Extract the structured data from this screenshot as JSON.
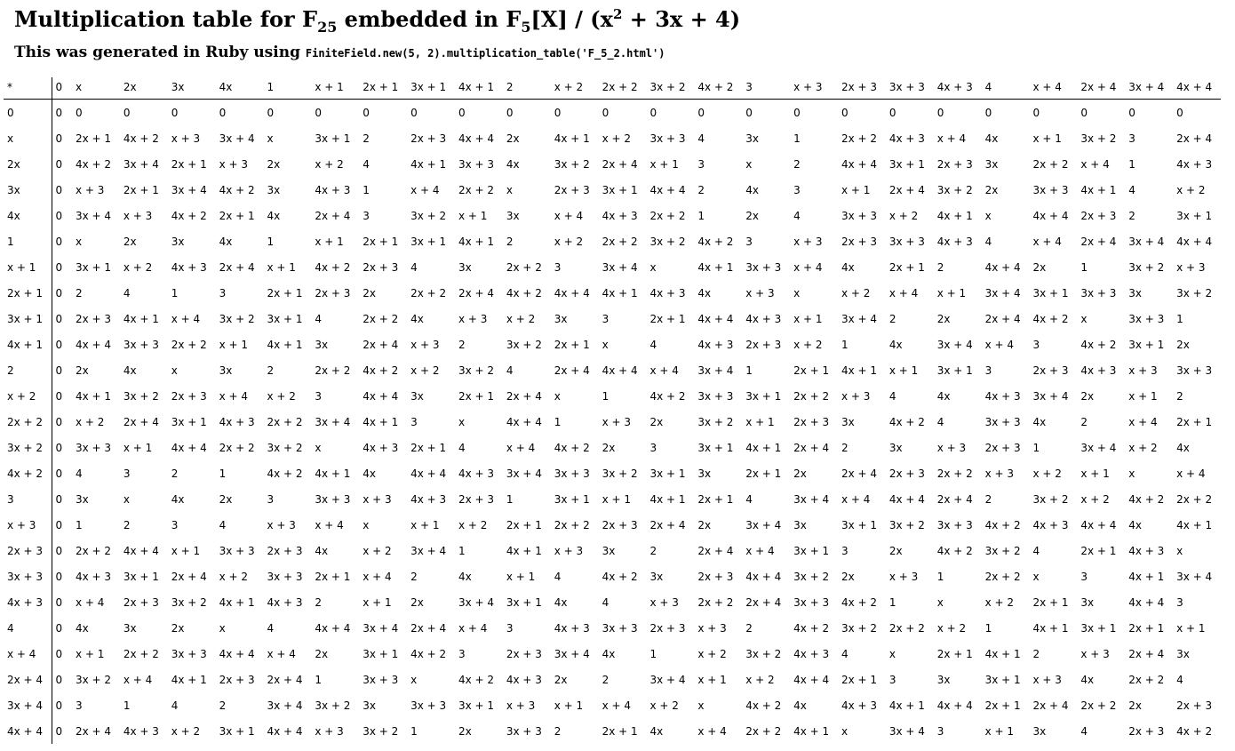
{
  "title": {
    "pre": "Multiplication table for F",
    "sub1": "25",
    "mid": " embedded in F",
    "sub2": "5",
    "post1": "[X] / (x",
    "sup": "2",
    "post2": " + 3x + 4)"
  },
  "subtitle": {
    "text": "This was generated in Ruby using ",
    "code": "FiniteField.new(5, 2).multiplication_table('F_5_2.html')"
  },
  "corner": "*",
  "elements": [
    "0",
    "x",
    "2x",
    "3x",
    "4x",
    "1",
    "x + 1",
    "2x + 1",
    "3x + 1",
    "4x + 1",
    "2",
    "x + 2",
    "2x + 2",
    "3x + 2",
    "4x + 2",
    "3",
    "x + 3",
    "2x + 3",
    "3x + 3",
    "4x + 3",
    "4",
    "x + 4",
    "2x + 4",
    "3x + 4",
    "4x + 4"
  ],
  "rows": [
    {
      "label": "0",
      "cells": [
        "0",
        "0",
        "0",
        "0",
        "0",
        "0",
        "0",
        "0",
        "0",
        "0",
        "0",
        "0",
        "0",
        "0",
        "0",
        "0",
        "0",
        "0",
        "0",
        "0",
        "0",
        "0",
        "0",
        "0",
        "0"
      ]
    },
    {
      "label": "x",
      "cells": [
        "0",
        "2x + 1",
        "4x + 2",
        "x + 3",
        "3x + 4",
        "x",
        "3x + 1",
        "2",
        "2x + 3",
        "4x + 4",
        "2x",
        "4x + 1",
        "x + 2",
        "3x + 3",
        "4",
        "3x",
        "1",
        "2x + 2",
        "4x + 3",
        "x + 4",
        "4x",
        "x + 1",
        "3x + 2",
        "3",
        "2x + 4"
      ]
    },
    {
      "label": "2x",
      "cells": [
        "0",
        "4x + 2",
        "3x + 4",
        "2x + 1",
        "x + 3",
        "2x",
        "x + 2",
        "4",
        "4x + 1",
        "3x + 3",
        "4x",
        "3x + 2",
        "2x + 4",
        "x + 1",
        "3",
        "x",
        "2",
        "4x + 4",
        "3x + 1",
        "2x + 3",
        "3x",
        "2x + 2",
        "x + 4",
        "1",
        "4x + 3"
      ]
    },
    {
      "label": "3x",
      "cells": [
        "0",
        "x + 3",
        "2x + 1",
        "3x + 4",
        "4x + 2",
        "3x",
        "4x + 3",
        "1",
        "x + 4",
        "2x + 2",
        "x",
        "2x + 3",
        "3x + 1",
        "4x + 4",
        "2",
        "4x",
        "3",
        "x + 1",
        "2x + 4",
        "3x + 2",
        "2x",
        "3x + 3",
        "4x + 1",
        "4",
        "x + 2"
      ]
    },
    {
      "label": "4x",
      "cells": [
        "0",
        "3x + 4",
        "x + 3",
        "4x + 2",
        "2x + 1",
        "4x",
        "2x + 4",
        "3",
        "3x + 2",
        "x + 1",
        "3x",
        "x + 4",
        "4x + 3",
        "2x + 2",
        "1",
        "2x",
        "4",
        "3x + 3",
        "x + 2",
        "4x + 1",
        "x",
        "4x + 4",
        "2x + 3",
        "2",
        "3x + 1"
      ]
    },
    {
      "label": "1",
      "cells": [
        "0",
        "x",
        "2x",
        "3x",
        "4x",
        "1",
        "x + 1",
        "2x + 1",
        "3x + 1",
        "4x + 1",
        "2",
        "x + 2",
        "2x + 2",
        "3x + 2",
        "4x + 2",
        "3",
        "x + 3",
        "2x + 3",
        "3x + 3",
        "4x + 3",
        "4",
        "x + 4",
        "2x + 4",
        "3x + 4",
        "4x + 4"
      ]
    },
    {
      "label": "x + 1",
      "cells": [
        "0",
        "3x + 1",
        "x + 2",
        "4x + 3",
        "2x + 4",
        "x + 1",
        "4x + 2",
        "2x + 3",
        "4",
        "3x",
        "2x + 2",
        "3",
        "3x + 4",
        "x",
        "4x + 1",
        "3x + 3",
        "x + 4",
        "4x",
        "2x + 1",
        "2",
        "4x + 4",
        "2x",
        "1",
        "3x + 2",
        "x + 3"
      ]
    },
    {
      "label": "2x + 1",
      "cells": [
        "0",
        "2",
        "4",
        "1",
        "3",
        "2x + 1",
        "2x + 3",
        "2x",
        "2x + 2",
        "2x + 4",
        "4x + 2",
        "4x + 4",
        "4x + 1",
        "4x + 3",
        "4x",
        "x + 3",
        "x",
        "x + 2",
        "x + 4",
        "x + 1",
        "3x + 4",
        "3x + 1",
        "3x + 3",
        "3x",
        "3x + 2"
      ]
    },
    {
      "label": "3x + 1",
      "cells": [
        "0",
        "2x + 3",
        "4x + 1",
        "x + 4",
        "3x + 2",
        "3x + 1",
        "4",
        "2x + 2",
        "4x",
        "x + 3",
        "x + 2",
        "3x",
        "3",
        "2x + 1",
        "4x + 4",
        "4x + 3",
        "x + 1",
        "3x + 4",
        "2",
        "2x",
        "2x + 4",
        "4x + 2",
        "x",
        "3x + 3",
        "1"
      ]
    },
    {
      "label": "4x + 1",
      "cells": [
        "0",
        "4x + 4",
        "3x + 3",
        "2x + 2",
        "x + 1",
        "4x + 1",
        "3x",
        "2x + 4",
        "x + 3",
        "2",
        "3x + 2",
        "2x + 1",
        "x",
        "4",
        "4x + 3",
        "2x + 3",
        "x + 2",
        "1",
        "4x",
        "3x + 4",
        "x + 4",
        "3",
        "4x + 2",
        "3x + 1",
        "2x"
      ]
    },
    {
      "label": "2",
      "cells": [
        "0",
        "2x",
        "4x",
        "x",
        "3x",
        "2",
        "2x + 2",
        "4x + 2",
        "x + 2",
        "3x + 2",
        "4",
        "2x + 4",
        "4x + 4",
        "x + 4",
        "3x + 4",
        "1",
        "2x + 1",
        "4x + 1",
        "x + 1",
        "3x + 1",
        "3",
        "2x + 3",
        "4x + 3",
        "x + 3",
        "3x + 3"
      ]
    },
    {
      "label": "x + 2",
      "cells": [
        "0",
        "4x + 1",
        "3x + 2",
        "2x + 3",
        "x + 4",
        "x + 2",
        "3",
        "4x + 4",
        "3x",
        "2x + 1",
        "2x + 4",
        "x",
        "1",
        "4x + 2",
        "3x + 3",
        "3x + 1",
        "2x + 2",
        "x + 3",
        "4",
        "4x",
        "4x + 3",
        "3x + 4",
        "2x",
        "x + 1",
        "2"
      ]
    },
    {
      "label": "2x + 2",
      "cells": [
        "0",
        "x + 2",
        "2x + 4",
        "3x + 1",
        "4x + 3",
        "2x + 2",
        "3x + 4",
        "4x + 1",
        "3",
        "x",
        "4x + 4",
        "1",
        "x + 3",
        "2x",
        "3x + 2",
        "x + 1",
        "2x + 3",
        "3x",
        "4x + 2",
        "4",
        "3x + 3",
        "4x",
        "2",
        "x + 4",
        "2x + 1"
      ]
    },
    {
      "label": "3x + 2",
      "cells": [
        "0",
        "3x + 3",
        "x + 1",
        "4x + 4",
        "2x + 2",
        "3x + 2",
        "x",
        "4x + 3",
        "2x + 1",
        "4",
        "x + 4",
        "4x + 2",
        "2x",
        "3",
        "3x + 1",
        "4x + 1",
        "2x + 4",
        "2",
        "3x",
        "x + 3",
        "2x + 3",
        "1",
        "3x + 4",
        "x + 2",
        "4x"
      ]
    },
    {
      "label": "4x + 2",
      "cells": [
        "0",
        "4",
        "3",
        "2",
        "1",
        "4x + 2",
        "4x + 1",
        "4x",
        "4x + 4",
        "4x + 3",
        "3x + 4",
        "3x + 3",
        "3x + 2",
        "3x + 1",
        "3x",
        "2x + 1",
        "2x",
        "2x + 4",
        "2x + 3",
        "2x + 2",
        "x + 3",
        "x + 2",
        "x + 1",
        "x",
        "x + 4"
      ]
    },
    {
      "label": "3",
      "cells": [
        "0",
        "3x",
        "x",
        "4x",
        "2x",
        "3",
        "3x + 3",
        "x + 3",
        "4x + 3",
        "2x + 3",
        "1",
        "3x + 1",
        "x + 1",
        "4x + 1",
        "2x + 1",
        "4",
        "3x + 4",
        "x + 4",
        "4x + 4",
        "2x + 4",
        "2",
        "3x + 2",
        "x + 2",
        "4x + 2",
        "2x + 2"
      ]
    },
    {
      "label": "x + 3",
      "cells": [
        "0",
        "1",
        "2",
        "3",
        "4",
        "x + 3",
        "x + 4",
        "x",
        "x + 1",
        "x + 2",
        "2x + 1",
        "2x + 2",
        "2x + 3",
        "2x + 4",
        "2x",
        "3x + 4",
        "3x",
        "3x + 1",
        "3x + 2",
        "3x + 3",
        "4x + 2",
        "4x + 3",
        "4x + 4",
        "4x",
        "4x + 1"
      ]
    },
    {
      "label": "2x + 3",
      "cells": [
        "0",
        "2x + 2",
        "4x + 4",
        "x + 1",
        "3x + 3",
        "2x + 3",
        "4x",
        "x + 2",
        "3x + 4",
        "1",
        "4x + 1",
        "x + 3",
        "3x",
        "2",
        "2x + 4",
        "x + 4",
        "3x + 1",
        "3",
        "2x",
        "4x + 2",
        "3x + 2",
        "4",
        "2x + 1",
        "4x + 3",
        "x"
      ]
    },
    {
      "label": "3x + 3",
      "cells": [
        "0",
        "4x + 3",
        "3x + 1",
        "2x + 4",
        "x + 2",
        "3x + 3",
        "2x + 1",
        "x + 4",
        "2",
        "4x",
        "x + 1",
        "4",
        "4x + 2",
        "3x",
        "2x + 3",
        "4x + 4",
        "3x + 2",
        "2x",
        "x + 3",
        "1",
        "2x + 2",
        "x",
        "3",
        "4x + 1",
        "3x + 4"
      ]
    },
    {
      "label": "4x + 3",
      "cells": [
        "0",
        "x + 4",
        "2x + 3",
        "3x + 2",
        "4x + 1",
        "4x + 3",
        "2",
        "x + 1",
        "2x",
        "3x + 4",
        "3x + 1",
        "4x",
        "4",
        "x + 3",
        "2x + 2",
        "2x + 4",
        "3x + 3",
        "4x + 2",
        "1",
        "x",
        "x + 2",
        "2x + 1",
        "3x",
        "4x + 4",
        "3"
      ]
    },
    {
      "label": "4",
      "cells": [
        "0",
        "4x",
        "3x",
        "2x",
        "x",
        "4",
        "4x + 4",
        "3x + 4",
        "2x + 4",
        "x + 4",
        "3",
        "4x + 3",
        "3x + 3",
        "2x + 3",
        "x + 3",
        "2",
        "4x + 2",
        "3x + 2",
        "2x + 2",
        "x + 2",
        "1",
        "4x + 1",
        "3x + 1",
        "2x + 1",
        "x + 1"
      ]
    },
    {
      "label": "x + 4",
      "cells": [
        "0",
        "x + 1",
        "2x + 2",
        "3x + 3",
        "4x + 4",
        "x + 4",
        "2x",
        "3x + 1",
        "4x + 2",
        "3",
        "2x + 3",
        "3x + 4",
        "4x",
        "1",
        "x + 2",
        "3x + 2",
        "4x + 3",
        "4",
        "x",
        "2x + 1",
        "4x + 1",
        "2",
        "x + 3",
        "2x + 4",
        "3x"
      ]
    },
    {
      "label": "2x + 4",
      "cells": [
        "0",
        "3x + 2",
        "x + 4",
        "4x + 1",
        "2x + 3",
        "2x + 4",
        "1",
        "3x + 3",
        "x",
        "4x + 2",
        "4x + 3",
        "2x",
        "2",
        "3x + 4",
        "x + 1",
        "x + 2",
        "4x + 4",
        "2x + 1",
        "3",
        "3x",
        "3x + 1",
        "x + 3",
        "4x",
        "2x + 2",
        "4"
      ]
    },
    {
      "label": "3x + 4",
      "cells": [
        "0",
        "3",
        "1",
        "4",
        "2",
        "3x + 4",
        "3x + 2",
        "3x",
        "3x + 3",
        "3x + 1",
        "x + 3",
        "x + 1",
        "x + 4",
        "x + 2",
        "x",
        "4x + 2",
        "4x",
        "4x + 3",
        "4x + 1",
        "4x + 4",
        "2x + 1",
        "2x + 4",
        "2x + 2",
        "2x",
        "2x + 3"
      ]
    },
    {
      "label": "4x + 4",
      "cells": [
        "0",
        "2x + 4",
        "4x + 3",
        "x + 2",
        "3x + 1",
        "4x + 4",
        "x + 3",
        "3x + 2",
        "1",
        "2x",
        "3x + 3",
        "2",
        "2x + 1",
        "4x",
        "x + 4",
        "2x + 2",
        "4x + 1",
        "x",
        "3x + 4",
        "3",
        "x + 1",
        "3x",
        "4",
        "2x + 3",
        "4x + 2"
      ]
    }
  ]
}
